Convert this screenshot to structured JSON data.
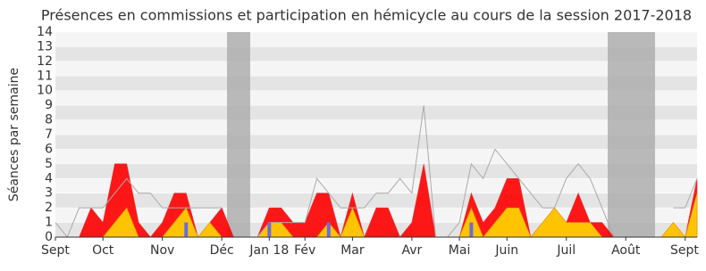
{
  "chart_data": {
    "type": "area",
    "title": "Présences en commissions et participation en hémicycle au cours de la session 2017-2018",
    "y_label": "Séances par semaine",
    "categories": [
      "Sept",
      null,
      null,
      null,
      "Oct",
      null,
      null,
      null,
      null,
      "Nov",
      null,
      null,
      null,
      null,
      "Déc",
      null,
      null,
      null,
      "Jan 18",
      null,
      null,
      "Fév",
      null,
      null,
      null,
      "Mar",
      null,
      null,
      null,
      null,
      "Avr",
      null,
      null,
      null,
      "Mai",
      null,
      null,
      null,
      "Juin",
      null,
      null,
      null,
      null,
      "Juil",
      null,
      null,
      null,
      null,
      "Août",
      null,
      null,
      null,
      null,
      "Sept",
      null
    ],
    "series": [
      {
        "color": "#ff0000",
        "values": [
          0,
          0,
          0,
          2,
          1,
          5,
          5,
          1,
          0,
          1,
          3,
          3,
          0,
          1,
          2,
          0,
          0,
          0,
          2,
          2,
          1,
          1,
          3,
          3,
          0,
          3,
          0,
          2,
          2,
          0,
          1,
          5,
          0,
          0,
          0,
          3,
          1,
          2,
          4,
          4,
          0,
          1,
          2,
          1,
          3,
          1,
          1,
          0,
          0,
          0,
          0,
          0,
          1,
          0,
          4
        ]
      },
      {
        "color": "#ffd700",
        "values": [
          0,
          0,
          0,
          0,
          0,
          1,
          2,
          0,
          0,
          0,
          1,
          2,
          0,
          1,
          0,
          0,
          0,
          0,
          1,
          1,
          0,
          0,
          0,
          1,
          0,
          2,
          0,
          0,
          0,
          0,
          0,
          0,
          0,
          0,
          0,
          2,
          0,
          1,
          2,
          2,
          0,
          1,
          2,
          1,
          1,
          1,
          0,
          0,
          0,
          0,
          0,
          0,
          1,
          0,
          3
        ]
      },
      {
        "color": "#aaaaaa",
        "values": [
          1,
          0,
          2,
          2,
          2,
          3,
          4,
          3,
          3,
          2,
          2,
          2,
          2,
          2,
          2,
          null,
          null,
          0,
          1,
          1,
          1,
          1,
          4,
          3,
          2,
          2,
          2,
          3,
          3,
          4,
          3,
          9,
          0,
          0,
          1,
          5,
          4,
          6,
          5,
          4,
          3,
          2,
          2,
          4,
          5,
          4,
          2,
          0,
          null,
          null,
          null,
          null,
          2,
          2,
          4
        ]
      },
      {
        "color": "#6b6bdb",
        "values": [
          null,
          null,
          null,
          null,
          null,
          null,
          null,
          null,
          null,
          null,
          null,
          1,
          null,
          null,
          null,
          null,
          null,
          null,
          1,
          null,
          null,
          null,
          null,
          1,
          null,
          null,
          null,
          null,
          null,
          null,
          null,
          null,
          null,
          null,
          null,
          1,
          null,
          null,
          null,
          null,
          null,
          null,
          null,
          null,
          null,
          null,
          null,
          null,
          null,
          null,
          null,
          null,
          null,
          null,
          null
        ]
      }
    ],
    "ylim": [
      0,
      14
    ],
    "yticks": [
      0,
      1,
      2,
      3,
      4,
      5,
      6,
      7,
      8,
      9,
      10,
      11,
      12,
      13,
      14
    ],
    "grid": true
  }
}
